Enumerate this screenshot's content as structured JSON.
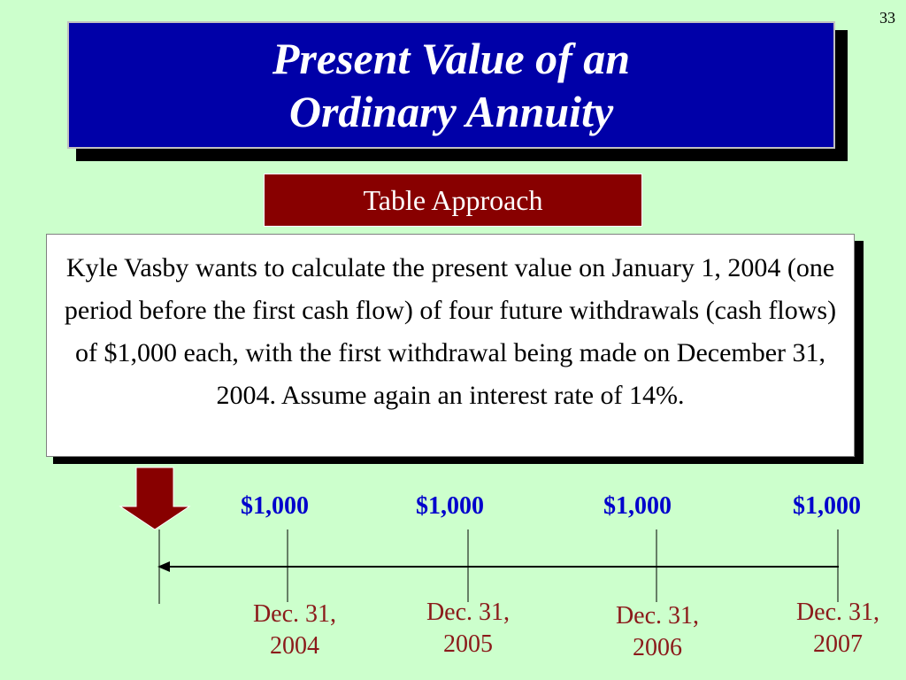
{
  "slide_number": "33",
  "title": {
    "line1": "Present Value of an",
    "line2": "Ordinary Annuity"
  },
  "subtitle": "Table Approach",
  "description": "Kyle Vasby wants to calculate the present value on January 1, 2004 (one period before the first cash flow) of four future withdrawals (cash flows) of $1,000 each, with the first withdrawal being made on December 31, 2004.  Assume again an interest rate of 14%.",
  "timeline": {
    "cash_flows": [
      {
        "amount": "$1,000",
        "date_line1": "Dec. 31,",
        "date_line2": "2004"
      },
      {
        "amount": "$1,000",
        "date_line1": "Dec. 31,",
        "date_line2": "2005"
      },
      {
        "amount": "$1,000",
        "date_line1": "Dec. 31,",
        "date_line2": "2006"
      },
      {
        "amount": "$1,000",
        "date_line1": "Dec. 31,",
        "date_line2": "2007"
      }
    ]
  },
  "colors": {
    "background": "#ccffcc",
    "title_bg": "#0000a8",
    "subtitle_bg": "#880000",
    "amount_text": "#0000cc",
    "date_text": "#8b1a1a",
    "arrow_fill": "#880000"
  },
  "icons": {
    "pointer": "down-arrow-icon"
  }
}
